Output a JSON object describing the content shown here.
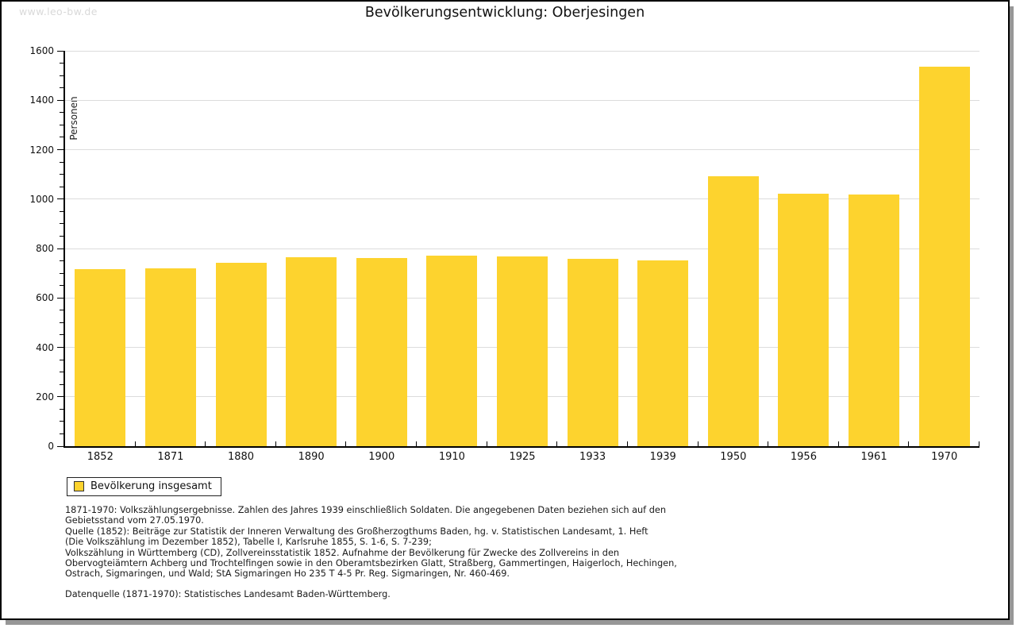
{
  "watermark": "www.leo-bw.de",
  "title": "Bevölkerungsentwicklung: Oberjesingen",
  "chart_data": {
    "type": "bar",
    "title": "Bevölkerungsentwicklung: Oberjesingen",
    "xlabel": "",
    "ylabel": "Personen",
    "categories": [
      "1852",
      "1871",
      "1880",
      "1890",
      "1900",
      "1910",
      "1925",
      "1933",
      "1939",
      "1950",
      "1956",
      "1961",
      "1970"
    ],
    "values": [
      715,
      720,
      742,
      765,
      762,
      771,
      768,
      758,
      753,
      1092,
      1022,
      1019,
      1535
    ],
    "ylim": [
      0,
      1600
    ],
    "y_major_step": 200,
    "y_minor_step": 50,
    "grid": "horizontal major gridlines only",
    "legend_position": "bottom-left",
    "bar_color": "#FDD32E",
    "gridline_color": "#dcdcdc",
    "axis_color": "#000000",
    "legend": {
      "label": "Bevölkerung insgesamt"
    }
  },
  "footnotes": {
    "lines": [
      "1871-1970: Volkszählungsergebnisse. Zahlen des Jahres 1939 einschließlich Soldaten. Die angegebenen Daten beziehen sich auf den",
      "Gebietsstand vom 27.05.1970.",
      "Quelle (1852): Beiträge zur Statistik der Inneren Verwaltung des Großherzogthums Baden, hg. v. Statistischen Landesamt, 1. Heft",
      "(Die Volkszählung im Dezember 1852), Tabelle I, Karlsruhe 1855, S. 1-6, S. 7-239;",
      "Volkszählung in Württemberg (CD), Zollvereinsstatistik 1852. Aufnahme der Bevölkerung für Zwecke des Zollvereins in den",
      "Obervogteiämtern Achberg und Trochtelfingen sowie in den Oberamtsbezirken Glatt, Straßberg, Gammertingen, Haigerloch, Hechingen,",
      "Ostrach, Sigmaringen, und Wald; StA Sigmaringen Ho 235 T 4-5 Pr. Reg. Sigmaringen, Nr. 460-469."
    ],
    "source": "Datenquelle (1871-1970): Statistisches Landesamt Baden-Württemberg."
  }
}
